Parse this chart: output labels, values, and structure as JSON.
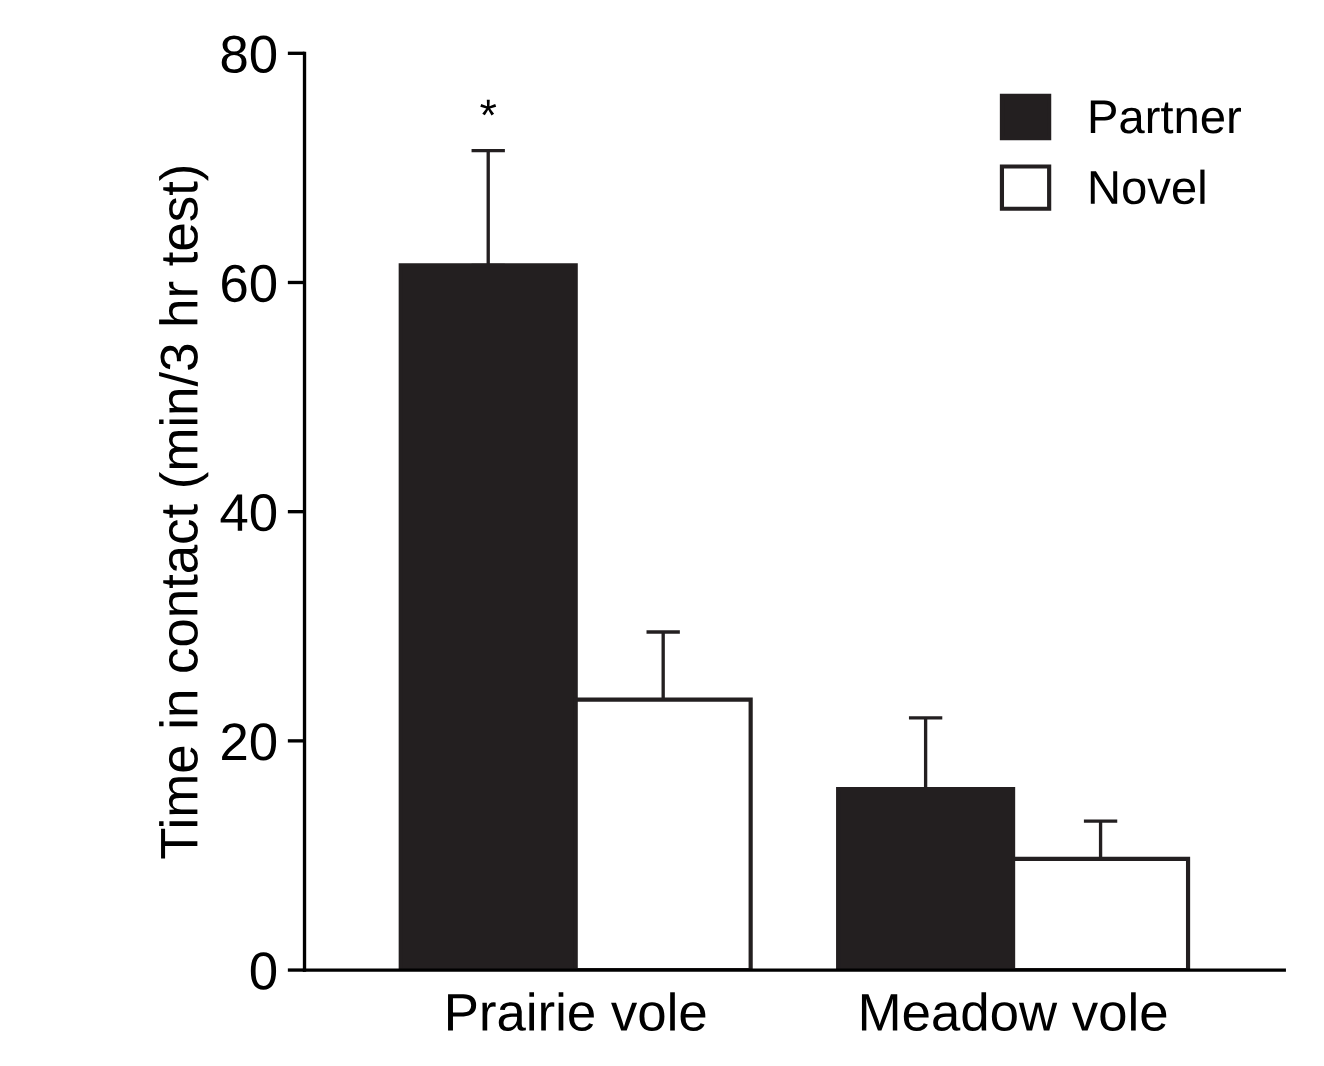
{
  "chart_data": {
    "type": "bar",
    "ylabel": "Time in contact (min/3 hr test)",
    "categories": [
      "Prairie vole",
      "Meadow vole"
    ],
    "series": [
      {
        "name": "Partner",
        "color": "#231f20",
        "values": [
          61.5,
          15.8
        ],
        "errors": [
          [
            61.5,
            71.5
          ],
          [
            15.8,
            22
          ]
        ]
      },
      {
        "name": "Novel",
        "color": "#ffffff",
        "values": [
          23.6,
          9.7
        ],
        "errors": [
          [
            23.6,
            29.5
          ],
          [
            9.7,
            13
          ]
        ]
      }
    ],
    "ylim": [
      0,
      80
    ],
    "yticks": [
      0,
      20,
      40,
      60,
      80
    ],
    "grid": false,
    "legend": "top right",
    "annotations": [
      "*"
    ]
  }
}
